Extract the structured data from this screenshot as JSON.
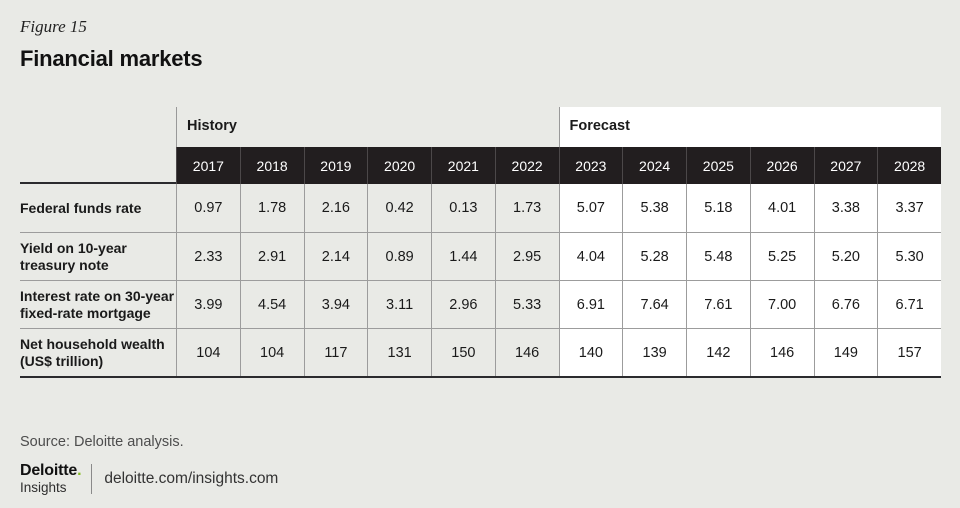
{
  "page": {
    "figure_label": "Figure 15",
    "title": "Financial markets",
    "source": "Source: Deloitte analysis.",
    "background_color": "#e9eae6"
  },
  "logo": {
    "brand": "Deloitte",
    "brand_dot": ".",
    "sub_brand": "Insights",
    "url": "deloitte.com/insights.com",
    "dot_color": "#86bc25"
  },
  "table": {
    "group_headers": {
      "history": "History",
      "forecast": "Forecast"
    },
    "years": [
      "2017",
      "2018",
      "2019",
      "2020",
      "2021",
      "2022",
      "2023",
      "2024",
      "2025",
      "2026",
      "2027",
      "2028"
    ],
    "rows": [
      {
        "label": "Federal funds rate",
        "values": [
          "0.97",
          "1.78",
          "2.16",
          "0.42",
          "0.13",
          "1.73",
          "5.07",
          "5.38",
          "5.18",
          "4.01",
          "3.38",
          "3.37"
        ]
      },
      {
        "label": "Yield on 10-year treasury note",
        "values": [
          "2.33",
          "2.91",
          "2.14",
          "0.89",
          "1.44",
          "2.95",
          "4.04",
          "5.28",
          "5.48",
          "5.25",
          "5.20",
          "5.30"
        ]
      },
      {
        "label": "Interest rate on 30-year fixed-rate mortgage",
        "values": [
          "3.99",
          "4.54",
          "3.94",
          "3.11",
          "2.96",
          "5.33",
          "6.91",
          "7.64",
          "7.61",
          "7.00",
          "6.76",
          "6.71"
        ]
      },
      {
        "label": "Net household wealth (US$ trillion)",
        "values": [
          "104",
          "104",
          "117",
          "131",
          "150",
          "146",
          "140",
          "139",
          "142",
          "146",
          "149",
          "157"
        ]
      }
    ],
    "colors": {
      "year_band_bg": "#221e1f",
      "history_bg": "#e9eae6",
      "forecast_bg": "#ffffff",
      "grid_line": "#9c9c9c",
      "heavy_line": "#2b2b2e"
    }
  },
  "chart_data": {
    "type": "table",
    "figure_label": "Figure 15",
    "title": "Financial markets",
    "column_groups": [
      {
        "label": "History",
        "columns": [
          "2017",
          "2018",
          "2019",
          "2020",
          "2021",
          "2022"
        ]
      },
      {
        "label": "Forecast",
        "columns": [
          "2023",
          "2024",
          "2025",
          "2026",
          "2027",
          "2028"
        ]
      }
    ],
    "categories": [
      "2017",
      "2018",
      "2019",
      "2020",
      "2021",
      "2022",
      "2023",
      "2024",
      "2025",
      "2026",
      "2027",
      "2028"
    ],
    "series": [
      {
        "name": "Federal funds rate",
        "values": [
          0.97,
          1.78,
          2.16,
          0.42,
          0.13,
          1.73,
          5.07,
          5.38,
          5.18,
          4.01,
          3.38,
          3.37
        ]
      },
      {
        "name": "Yield on 10-year treasury note",
        "values": [
          2.33,
          2.91,
          2.14,
          0.89,
          1.44,
          2.95,
          4.04,
          5.28,
          5.48,
          5.25,
          5.2,
          5.3
        ]
      },
      {
        "name": "Interest rate on 30-year fixed-rate mortgage",
        "values": [
          3.99,
          4.54,
          3.94,
          3.11,
          2.96,
          5.33,
          6.91,
          7.64,
          7.61,
          7.0,
          6.76,
          6.71
        ]
      },
      {
        "name": "Net household wealth (US$ trillion)",
        "values": [
          104,
          104,
          117,
          131,
          150,
          146,
          140,
          139,
          142,
          146,
          149,
          157
        ]
      }
    ],
    "source": "Source: Deloitte analysis."
  }
}
